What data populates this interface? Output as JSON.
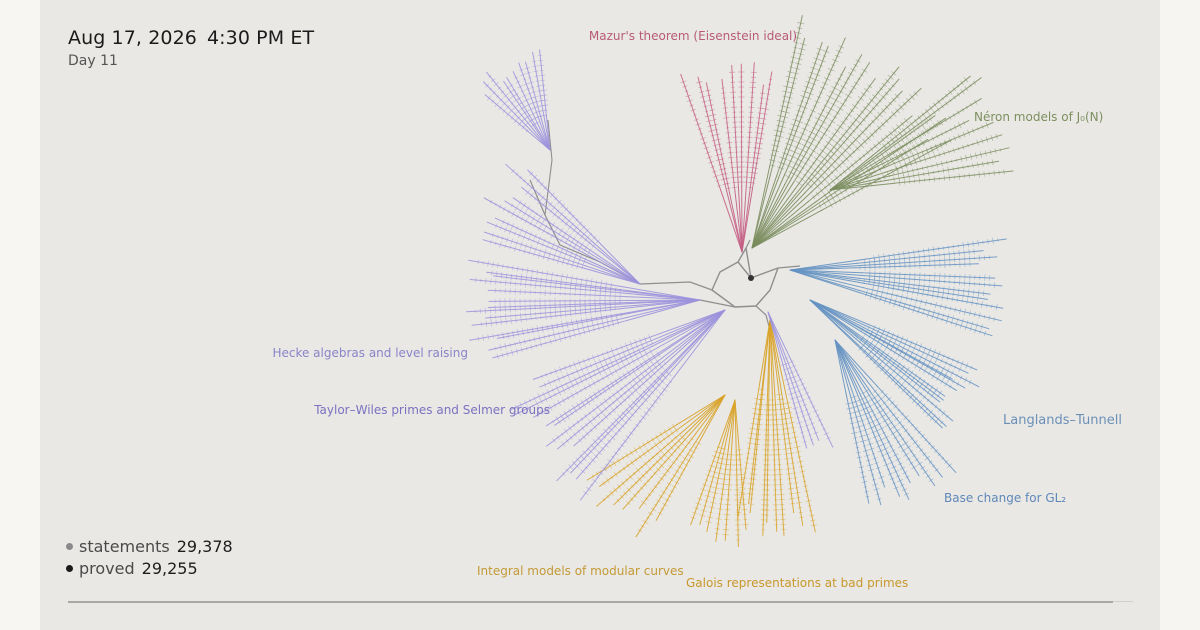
{
  "header": {
    "date": "Aug 17, 2026",
    "time": "4:30 PM ET",
    "day": "Day 11"
  },
  "legend": {
    "statements_label": "statements",
    "statements_value": "29,378",
    "proved_label": "proved",
    "proved_value": "29,255",
    "statements_color": "#8a8a8a",
    "proved_color": "#1a1a1a"
  },
  "branches": [
    {
      "key": "mazur",
      "label": "Mazur's theorem (Eisenstein ideal)",
      "color": "#b85a78"
    },
    {
      "key": "neron",
      "label": "Néron models of J₀(N)",
      "color": "#7d8f5f"
    },
    {
      "key": "langlands",
      "label": "Langlands–Tunnell",
      "color": "#6b90b8"
    },
    {
      "key": "basechange",
      "label": "Base change for GL₂",
      "color": "#5f88b8"
    },
    {
      "key": "galois",
      "label": "Galois representations at bad primes",
      "color": "#c8982c"
    },
    {
      "key": "integral",
      "label": "Integral models of modular curves",
      "color": "#c39a35"
    },
    {
      "key": "taylor",
      "label": "Taylor–Wiles primes and Selmer groups",
      "color": "#7a72c0"
    },
    {
      "key": "hecke",
      "label": "Hecke algebras and level raising",
      "color": "#8a84c8"
    }
  ],
  "tree_colors": {
    "trunk": "#8f8f8f",
    "mazur": "#c45e84",
    "neron": "#7b8d5e",
    "blue": "#6592c2",
    "gold": "#d8a227",
    "purple": "#9c92dc",
    "root": "#333333"
  }
}
